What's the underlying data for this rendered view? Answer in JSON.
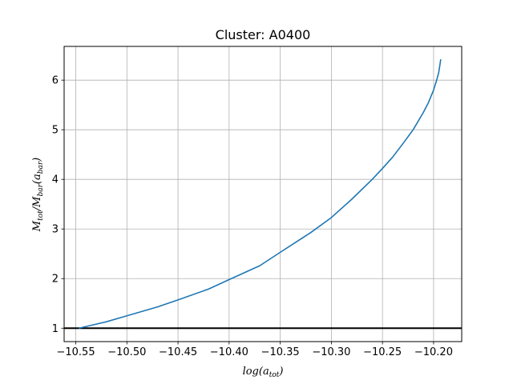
{
  "chart_data": {
    "type": "line",
    "title": "Cluster: A0400",
    "xlabel": {
      "base": "log(a",
      "sub": "tot",
      "tail": ")"
    },
    "ylabel": {
      "p1": "M",
      "s1": "tot",
      "p2": "/M",
      "s2": "bar",
      "p3": "(a",
      "s3": "bar",
      "p4": ")"
    },
    "xlim": [
      -10.5614,
      -10.1725
    ],
    "ylim": [
      0.73,
      6.68
    ],
    "xticks": [
      -10.55,
      -10.5,
      -10.45,
      -10.4,
      -10.35,
      -10.3,
      -10.25,
      -10.2
    ],
    "xtick_labels": [
      "−10.55",
      "−10.50",
      "−10.45",
      "−10.40",
      "−10.35",
      "−10.30",
      "−10.25",
      "−10.20"
    ],
    "yticks": [
      1,
      2,
      3,
      4,
      5,
      6
    ],
    "ytick_labels": [
      "1",
      "2",
      "3",
      "4",
      "5",
      "6"
    ],
    "grid": true,
    "series": [
      {
        "color": "#1f77b4",
        "x": [
          -10.547,
          -10.52,
          -10.5,
          -10.47,
          -10.45,
          -10.42,
          -10.4,
          -10.37,
          -10.35,
          -10.32,
          -10.3,
          -10.28,
          -10.26,
          -10.25,
          -10.24,
          -10.23,
          -10.22,
          -10.21,
          -10.205,
          -10.2,
          -10.197,
          -10.195,
          -10.194,
          -10.193
        ],
        "y": [
          1.0,
          1.13,
          1.25,
          1.43,
          1.57,
          1.79,
          1.98,
          2.26,
          2.53,
          2.93,
          3.23,
          3.6,
          4.0,
          4.22,
          4.45,
          4.72,
          5.0,
          5.35,
          5.55,
          5.8,
          6.0,
          6.15,
          6.28,
          6.42
        ]
      }
    ],
    "hlines": [
      {
        "y": 1.0,
        "color": "#000000"
      }
    ]
  }
}
